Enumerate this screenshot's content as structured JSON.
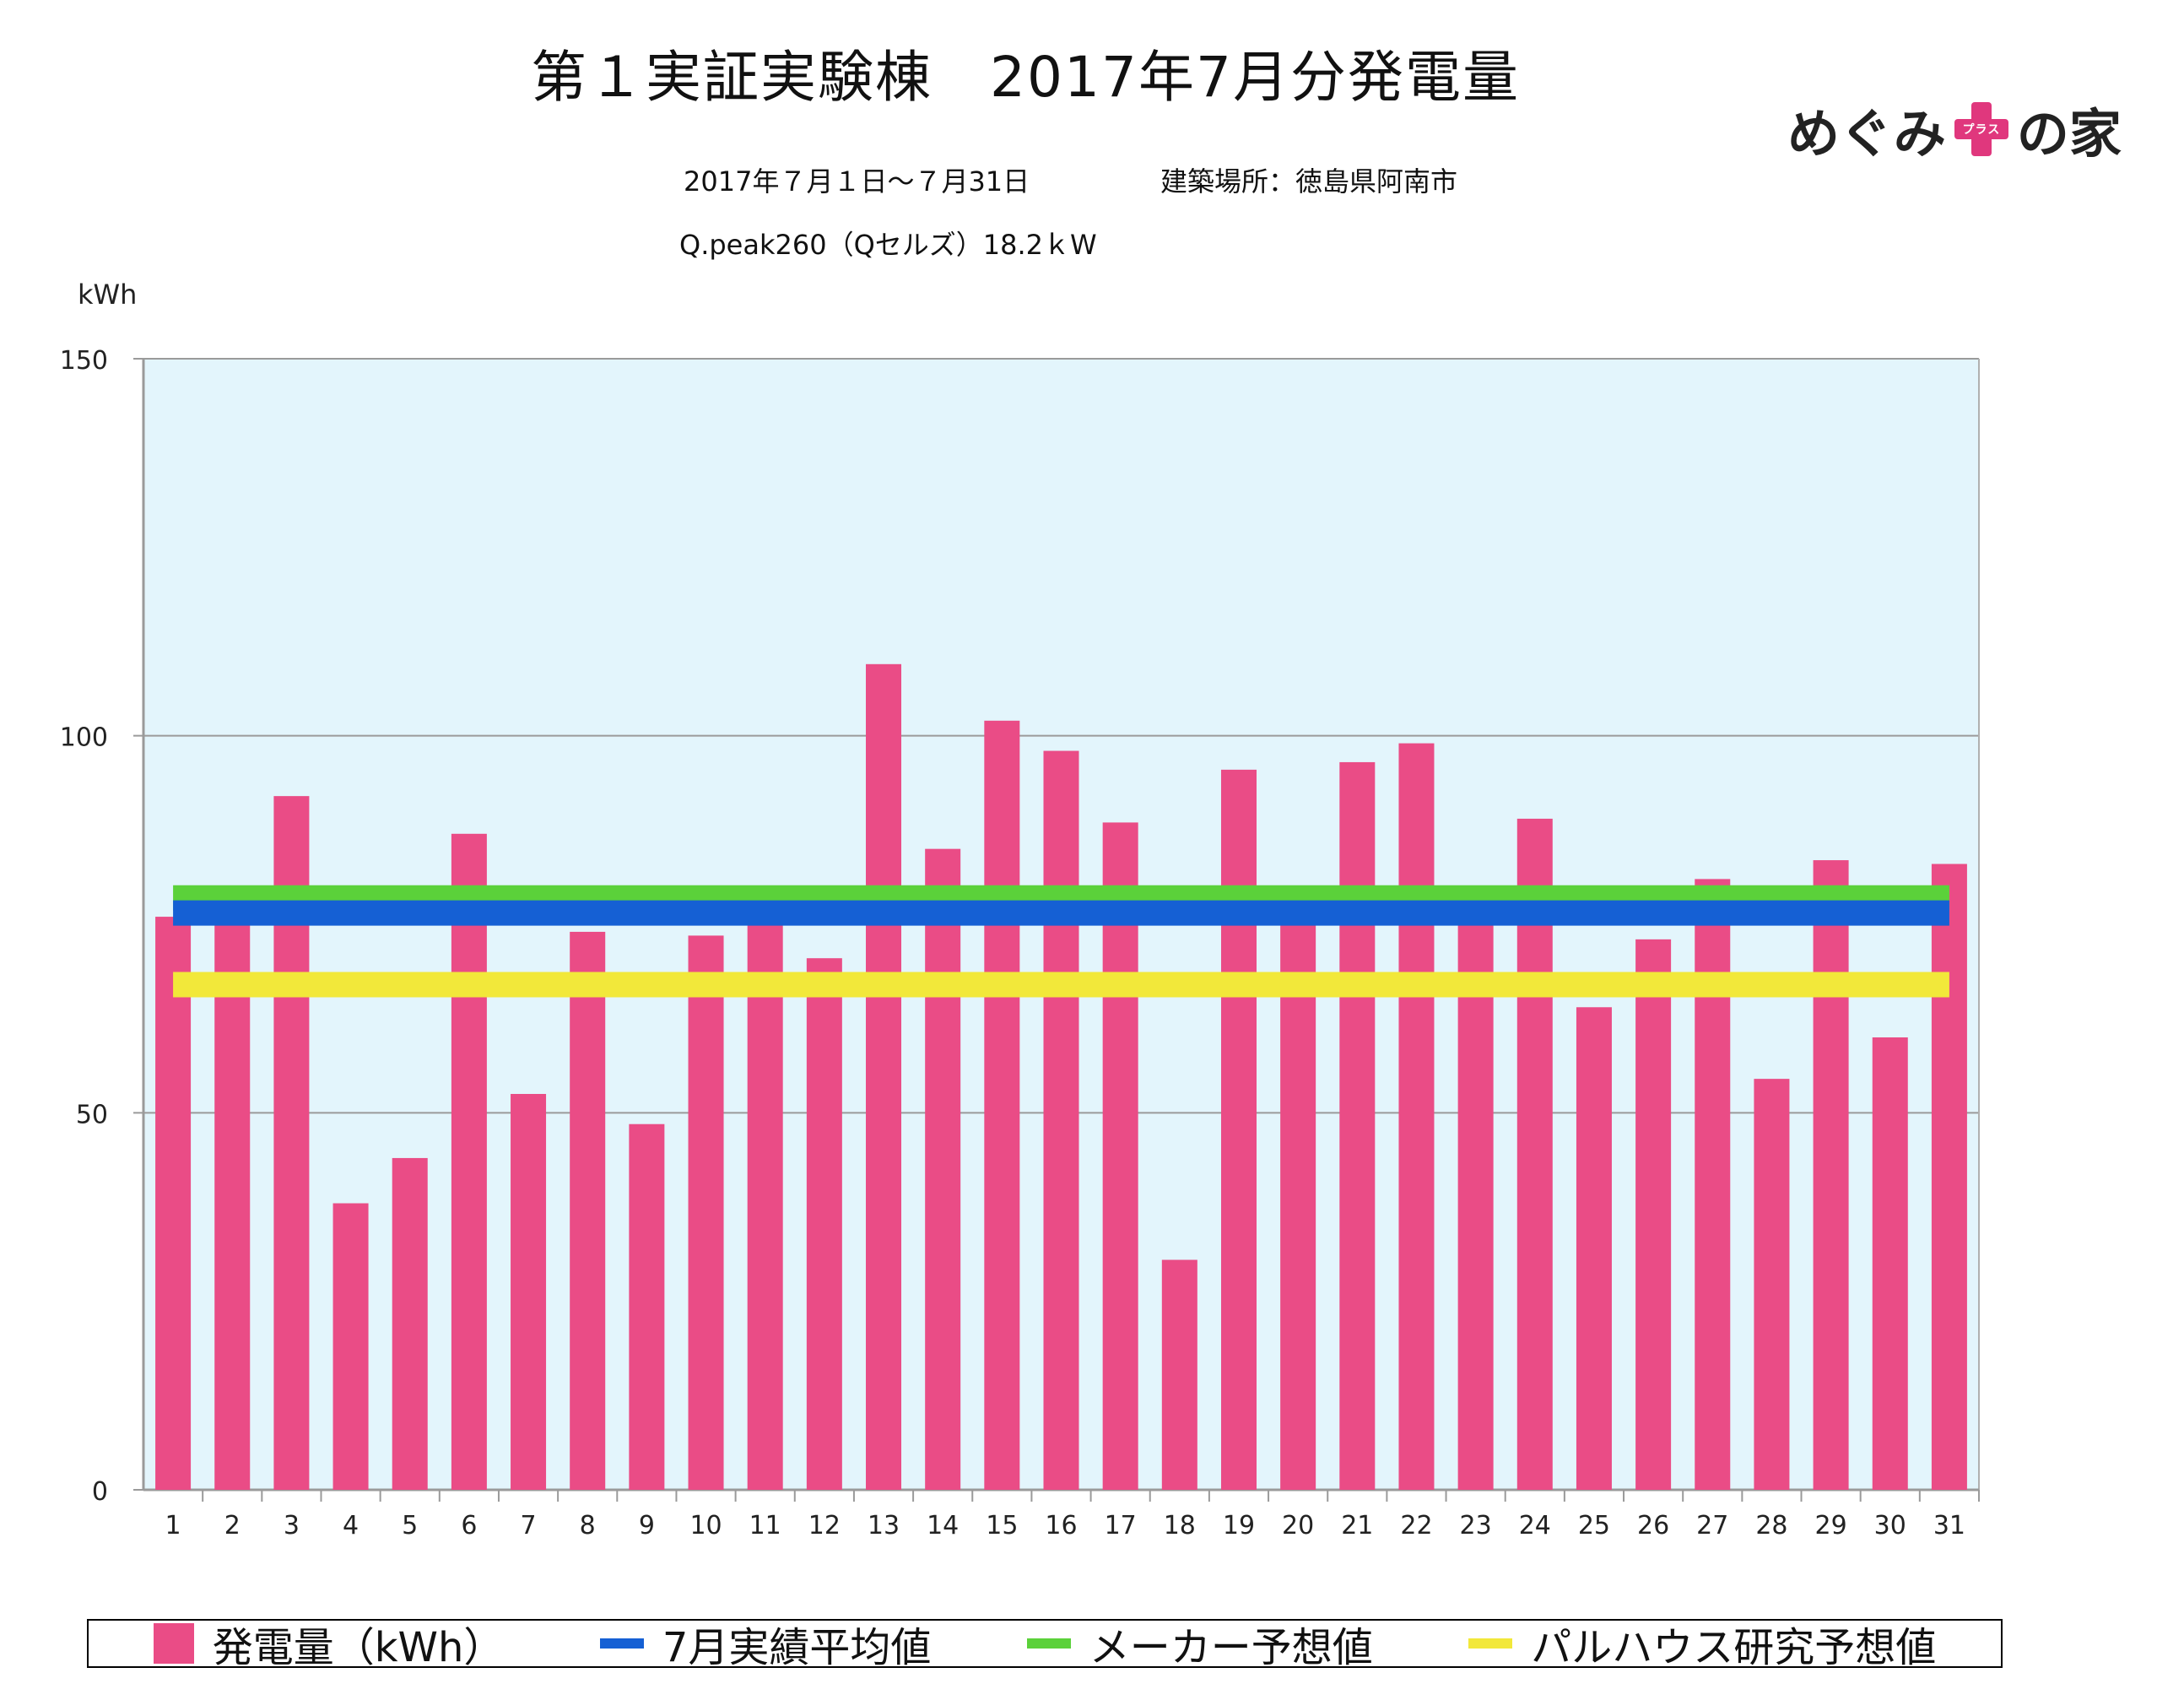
{
  "header": {
    "title": "第１実証実験棟　2017年7月分発電量",
    "period": "2017年７月１日〜７月31日",
    "location": "建築場所：徳島県阿南市",
    "panel": "Q.peak260（Qセルズ）18.2ｋW",
    "logo_left": "めぐみ",
    "logo_plus": "プラス",
    "logo_right": "の家"
  },
  "colors": {
    "bar": "#ea4c86",
    "actual_avg": "#1560d4",
    "maker_forecast": "#5bd13a",
    "research_forecast": "#f2e83a",
    "plot_bg": "#e3f5fc",
    "brand": "#e0377d"
  },
  "chart_data": {
    "type": "bar",
    "ylabel": "kWh",
    "ylim": [
      0,
      150
    ],
    "yticks": [
      0,
      50,
      100,
      150
    ],
    "grid": true,
    "categories": [
      "1",
      "2",
      "3",
      "4",
      "5",
      "6",
      "7",
      "8",
      "9",
      "10",
      "11",
      "12",
      "13",
      "14",
      "15",
      "16",
      "17",
      "18",
      "19",
      "20",
      "21",
      "22",
      "23",
      "24",
      "25",
      "26",
      "27",
      "28",
      "29",
      "30",
      "31"
    ],
    "series": [
      {
        "name": "発電量（kWh）",
        "values": [
          76,
          76,
          92,
          38,
          44,
          87,
          52.5,
          74,
          48.5,
          73.5,
          76,
          70.5,
          109.5,
          85,
          102,
          98,
          88.5,
          30.5,
          95.5,
          76,
          96.5,
          99,
          76,
          89,
          64,
          73,
          81,
          54.5,
          83.5,
          60,
          83
        ]
      }
    ],
    "reference_lines": [
      {
        "name": "7月実績平均値",
        "value": 76.5
      },
      {
        "name": "メーカー予想値",
        "value": 78.5
      },
      {
        "name": "パルハウス研究予想値",
        "value": 67
      }
    ],
    "legend_position": "bottom"
  }
}
